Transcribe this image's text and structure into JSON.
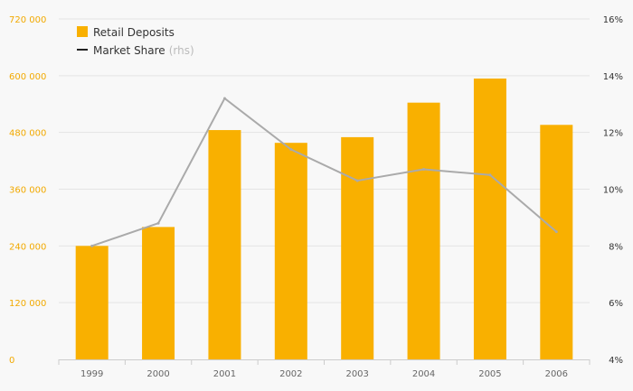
{
  "chart_data": {
    "type": "bar",
    "categories": [
      "1999",
      "2000",
      "2001",
      "2002",
      "2003",
      "2004",
      "2005",
      "2006"
    ],
    "series": [
      {
        "name": "Retail Deposits",
        "type": "bar",
        "axis": "left",
        "color": "#f9b000",
        "values": [
          240000,
          280000,
          485000,
          458000,
          470000,
          543000,
          594000,
          496000
        ]
      },
      {
        "name": "Market Share",
        "legend_suffix": "(rhs)",
        "type": "line",
        "axis": "right",
        "color": "#aaaaaa",
        "values": [
          8.0,
          8.8,
          13.2,
          11.4,
          10.3,
          10.7,
          10.5,
          8.5
        ]
      }
    ],
    "left_axis": {
      "min": 0,
      "max": 720000,
      "ticks": [
        0,
        120000,
        240000,
        360000,
        480000,
        600000,
        720000
      ],
      "tick_labels": [
        "0",
        "120 000",
        "240 000",
        "360 000",
        "480 000",
        "600 000",
        "720 000"
      ],
      "color": "#f2a900"
    },
    "right_axis": {
      "min": 4,
      "max": 16,
      "ticks": [
        4,
        6,
        8,
        10,
        12,
        14,
        16
      ],
      "tick_labels": [
        "4%",
        "6%",
        "8%",
        "10%",
        "12%",
        "14%",
        "16%"
      ],
      "color": "#333333"
    },
    "grid": true,
    "legend_position": "top-left",
    "title": "",
    "xlabel": "",
    "ylabel": ""
  }
}
